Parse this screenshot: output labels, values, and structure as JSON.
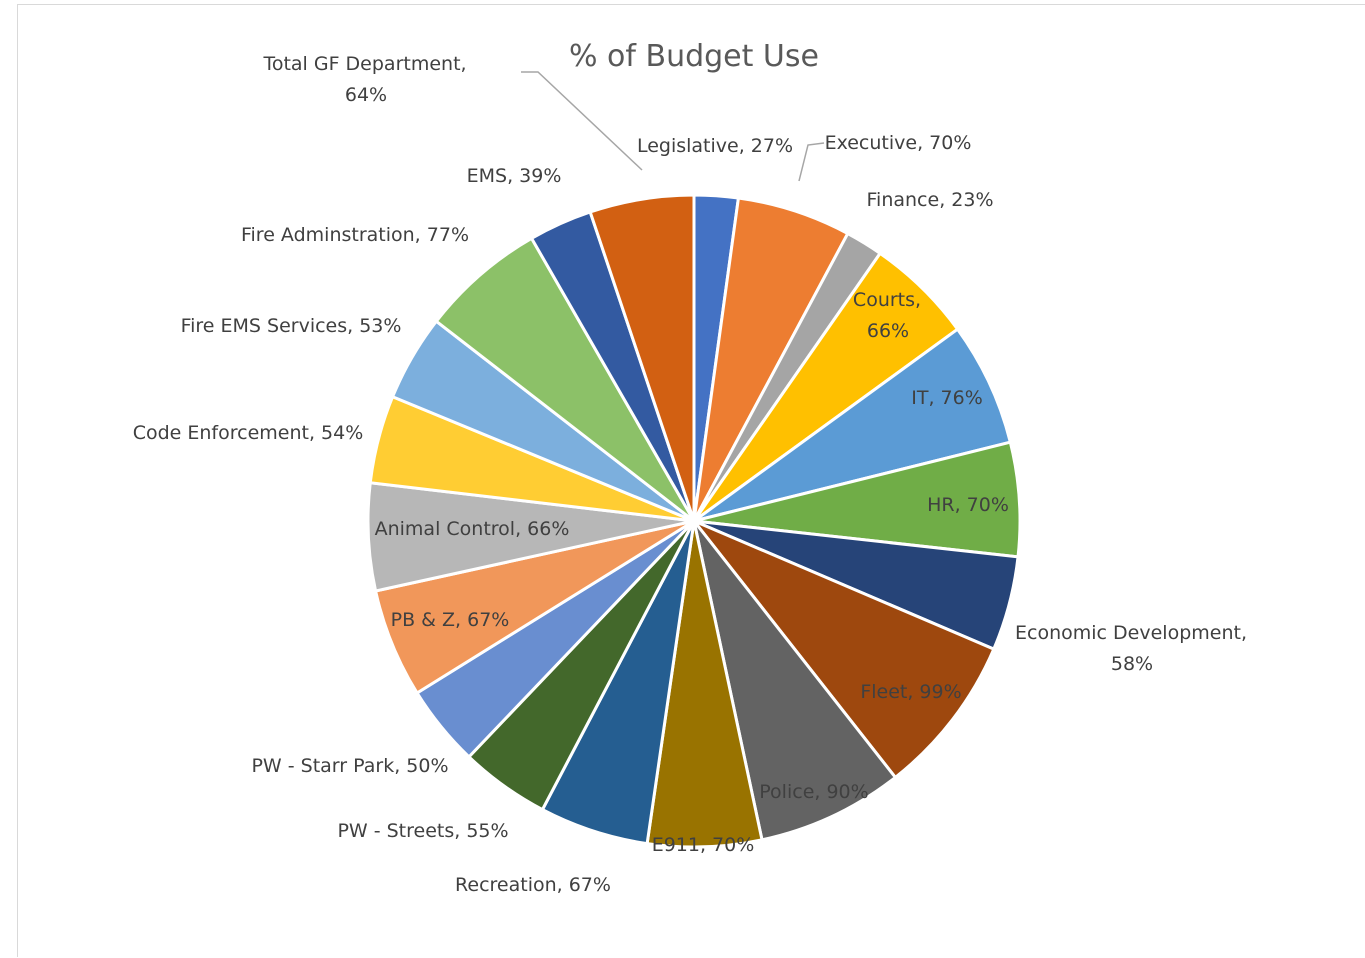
{
  "chart_data": {
    "type": "pie",
    "title": "% of Budget Use",
    "categories": [
      "Legislative",
      "Executive",
      "Finance",
      "Courts",
      "IT",
      "HR",
      "Economic Development",
      "Fleet",
      "Police",
      "E911",
      "Recreation",
      "PW - Streets",
      "PW - Starr Park",
      "PB & Z",
      "Animal Control",
      "Code Enforcement",
      "Fire EMS Services",
      "Fire Adminstration",
      "EMS",
      "Total GF Department"
    ],
    "values": [
      27,
      70,
      23,
      66,
      76,
      70,
      58,
      99,
      90,
      70,
      67,
      55,
      50,
      67,
      66,
      54,
      53,
      77,
      39,
      64
    ],
    "value_suffix": "%",
    "colors": [
      "#4472c4",
      "#ed7d31",
      "#a5a5a5",
      "#ffc000",
      "#5b9bd5",
      "#70ad47",
      "#264478",
      "#9e480e",
      "#636363",
      "#997300",
      "#255e91",
      "#43682b",
      "#698ed0",
      "#f1975a",
      "#b7b7b7",
      "#ffcd33",
      "#7cafdd",
      "#8cc168",
      "#335aa1",
      "#d26012"
    ],
    "data_labels": [
      "Legislative, 27%",
      "Executive, 70%",
      "Finance, 23%",
      "Courts, 66%",
      "IT, 76%",
      "HR, 70%",
      "Economic Development, 58%",
      "Fleet, 99%",
      "Police, 90%",
      "E911, 70%",
      "Recreation, 67%",
      "PW - Streets, 55%",
      "PW - Starr Park, 50%",
      "PB & Z, 67%",
      "Animal Control, 66%",
      "Code Enforcement, 54%",
      "Fire EMS Services, 53%",
      "Fire Adminstration, 77%",
      "EMS, 39%",
      "Total GF Department, 64%"
    ],
    "legend": "none"
  }
}
